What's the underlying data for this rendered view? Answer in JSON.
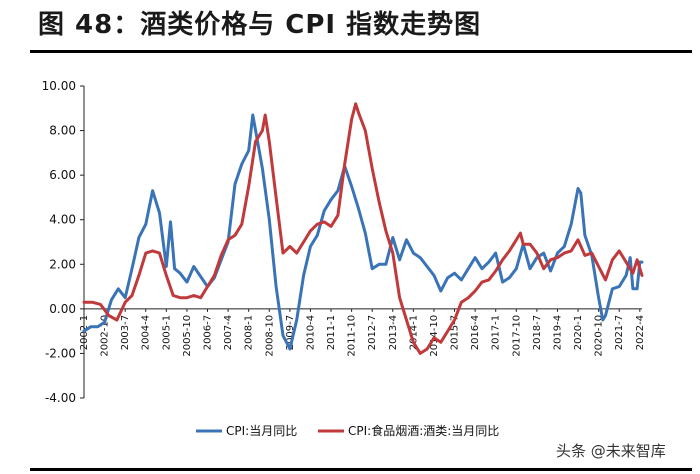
{
  "title": "图 48：酒类价格与 CPI 指数走势图",
  "watermark": "头条 @未来智库",
  "chart_data": {
    "type": "line",
    "title": "图 48：酒类价格与 CPI 指数走势图",
    "xlabel": "",
    "ylabel": "",
    "ylim": [
      -4,
      10
    ],
    "yticks": [
      "-4.00",
      "-2.00",
      "0.00",
      "2.00",
      "4.00",
      "6.00",
      "8.00",
      "10.00"
    ],
    "x_range": [
      2002.0,
      2022.33
    ],
    "xtick_labels": [
      "2002-1",
      "2002-10",
      "2003-7",
      "2004-4",
      "2005-1",
      "2005-10",
      "2006-7",
      "2007-4",
      "2008-1",
      "2008-10",
      "2009-7",
      "2010-4",
      "2011-1",
      "2011-10",
      "2012-7",
      "2013-4",
      "2014-1",
      "2014-10",
      "2015-7",
      "2016-4",
      "2017-1",
      "2017-10",
      "2018-7",
      "2019-4",
      "2020-1",
      "2020-10",
      "2021-7",
      "2022-4"
    ],
    "series": [
      {
        "name": "CPI:当月同比",
        "color": "#3a74b7",
        "points": [
          [
            2002.0,
            -1.0
          ],
          [
            2002.25,
            -0.8
          ],
          [
            2002.5,
            -0.8
          ],
          [
            2002.75,
            -0.6
          ],
          [
            2003.0,
            0.4
          ],
          [
            2003.25,
            0.9
          ],
          [
            2003.5,
            0.5
          ],
          [
            2003.75,
            1.8
          ],
          [
            2004.0,
            3.2
          ],
          [
            2004.25,
            3.8
          ],
          [
            2004.5,
            5.3
          ],
          [
            2004.75,
            4.3
          ],
          [
            2005.0,
            1.9
          ],
          [
            2005.15,
            3.9
          ],
          [
            2005.3,
            1.8
          ],
          [
            2005.5,
            1.6
          ],
          [
            2005.75,
            1.2
          ],
          [
            2006.0,
            1.9
          ],
          [
            2006.5,
            1.0
          ],
          [
            2006.75,
            1.4
          ],
          [
            2007.0,
            2.2
          ],
          [
            2007.25,
            3.0
          ],
          [
            2007.5,
            5.6
          ],
          [
            2007.75,
            6.5
          ],
          [
            2008.0,
            7.1
          ],
          [
            2008.15,
            8.7
          ],
          [
            2008.5,
            6.3
          ],
          [
            2008.75,
            4.0
          ],
          [
            2009.0,
            1.0
          ],
          [
            2009.25,
            -1.2
          ],
          [
            2009.5,
            -1.8
          ],
          [
            2009.75,
            -0.5
          ],
          [
            2010.0,
            1.5
          ],
          [
            2010.25,
            2.8
          ],
          [
            2010.5,
            3.3
          ],
          [
            2010.75,
            4.4
          ],
          [
            2011.0,
            4.9
          ],
          [
            2011.25,
            5.3
          ],
          [
            2011.5,
            6.4
          ],
          [
            2011.75,
            5.5
          ],
          [
            2012.0,
            4.5
          ],
          [
            2012.25,
            3.4
          ],
          [
            2012.5,
            1.8
          ],
          [
            2012.75,
            2.0
          ],
          [
            2013.0,
            2.0
          ],
          [
            2013.25,
            3.2
          ],
          [
            2013.5,
            2.2
          ],
          [
            2013.75,
            3.1
          ],
          [
            2014.0,
            2.5
          ],
          [
            2014.25,
            2.3
          ],
          [
            2014.5,
            1.9
          ],
          [
            2014.75,
            1.5
          ],
          [
            2015.0,
            0.8
          ],
          [
            2015.25,
            1.4
          ],
          [
            2015.5,
            1.6
          ],
          [
            2015.75,
            1.3
          ],
          [
            2016.0,
            1.8
          ],
          [
            2016.25,
            2.3
          ],
          [
            2016.5,
            1.8
          ],
          [
            2016.75,
            2.1
          ],
          [
            2017.0,
            2.5
          ],
          [
            2017.25,
            1.2
          ],
          [
            2017.5,
            1.4
          ],
          [
            2017.75,
            1.8
          ],
          [
            2018.0,
            2.9
          ],
          [
            2018.25,
            1.8
          ],
          [
            2018.5,
            2.3
          ],
          [
            2018.75,
            2.5
          ],
          [
            2019.0,
            1.7
          ],
          [
            2019.25,
            2.5
          ],
          [
            2019.5,
            2.8
          ],
          [
            2019.75,
            3.8
          ],
          [
            2020.0,
            5.4
          ],
          [
            2020.1,
            5.2
          ],
          [
            2020.25,
            3.3
          ],
          [
            2020.5,
            2.4
          ],
          [
            2020.75,
            0.5
          ],
          [
            2020.9,
            -0.5
          ],
          [
            2021.0,
            -0.3
          ],
          [
            2021.25,
            0.9
          ],
          [
            2021.5,
            1.0
          ],
          [
            2021.75,
            1.5
          ],
          [
            2021.9,
            2.3
          ],
          [
            2022.0,
            0.9
          ],
          [
            2022.15,
            0.9
          ],
          [
            2022.25,
            2.1
          ],
          [
            2022.33,
            2.1
          ]
        ]
      },
      {
        "name": "CPI:食品烟酒:酒类:当月同比",
        "color": "#c0393b",
        "points": [
          [
            2002.0,
            0.3
          ],
          [
            2002.3,
            0.3
          ],
          [
            2002.6,
            0.2
          ],
          [
            2002.9,
            -0.3
          ],
          [
            2003.2,
            -0.5
          ],
          [
            2003.5,
            0.3
          ],
          [
            2003.75,
            0.6
          ],
          [
            2004.0,
            1.5
          ],
          [
            2004.25,
            2.5
          ],
          [
            2004.5,
            2.6
          ],
          [
            2004.75,
            2.5
          ],
          [
            2005.0,
            1.5
          ],
          [
            2005.25,
            0.6
          ],
          [
            2005.5,
            0.5
          ],
          [
            2005.75,
            0.5
          ],
          [
            2006.0,
            0.6
          ],
          [
            2006.25,
            0.5
          ],
          [
            2006.5,
            1.0
          ],
          [
            2006.75,
            1.5
          ],
          [
            2007.0,
            2.4
          ],
          [
            2007.25,
            3.1
          ],
          [
            2007.5,
            3.3
          ],
          [
            2007.75,
            3.8
          ],
          [
            2008.0,
            5.5
          ],
          [
            2008.25,
            7.5
          ],
          [
            2008.5,
            8.0
          ],
          [
            2008.6,
            8.7
          ],
          [
            2008.75,
            7.5
          ],
          [
            2009.0,
            5.0
          ],
          [
            2009.25,
            2.5
          ],
          [
            2009.5,
            2.8
          ],
          [
            2009.75,
            2.5
          ],
          [
            2010.0,
            3.0
          ],
          [
            2010.25,
            3.5
          ],
          [
            2010.5,
            3.8
          ],
          [
            2010.75,
            3.9
          ],
          [
            2011.0,
            3.7
          ],
          [
            2011.25,
            4.2
          ],
          [
            2011.5,
            6.5
          ],
          [
            2011.75,
            8.5
          ],
          [
            2011.9,
            9.2
          ],
          [
            2012.0,
            8.8
          ],
          [
            2012.25,
            8.0
          ],
          [
            2012.5,
            6.3
          ],
          [
            2012.75,
            4.8
          ],
          [
            2013.0,
            3.5
          ],
          [
            2013.25,
            2.5
          ],
          [
            2013.5,
            0.5
          ],
          [
            2013.75,
            -0.5
          ],
          [
            2014.0,
            -1.5
          ],
          [
            2014.25,
            -2.0
          ],
          [
            2014.5,
            -1.8
          ],
          [
            2014.75,
            -1.3
          ],
          [
            2015.0,
            -1.5
          ],
          [
            2015.25,
            -1.0
          ],
          [
            2015.5,
            -0.5
          ],
          [
            2015.75,
            0.3
          ],
          [
            2016.0,
            0.5
          ],
          [
            2016.25,
            0.8
          ],
          [
            2016.5,
            1.2
          ],
          [
            2016.75,
            1.3
          ],
          [
            2017.0,
            1.7
          ],
          [
            2017.25,
            2.2
          ],
          [
            2017.5,
            2.6
          ],
          [
            2017.75,
            3.1
          ],
          [
            2017.9,
            3.4
          ],
          [
            2018.0,
            2.9
          ],
          [
            2018.25,
            2.9
          ],
          [
            2018.5,
            2.5
          ],
          [
            2018.75,
            1.8
          ],
          [
            2019.0,
            2.2
          ],
          [
            2019.25,
            2.3
          ],
          [
            2019.5,
            2.5
          ],
          [
            2019.75,
            2.6
          ],
          [
            2020.0,
            3.1
          ],
          [
            2020.25,
            2.4
          ],
          [
            2020.5,
            2.5
          ],
          [
            2020.75,
            1.9
          ],
          [
            2021.0,
            1.3
          ],
          [
            2021.25,
            2.2
          ],
          [
            2021.5,
            2.6
          ],
          [
            2021.75,
            2.1
          ],
          [
            2022.0,
            1.6
          ],
          [
            2022.15,
            2.2
          ],
          [
            2022.33,
            1.5
          ]
        ]
      }
    ],
    "legend": "bottom",
    "grid": false
  }
}
